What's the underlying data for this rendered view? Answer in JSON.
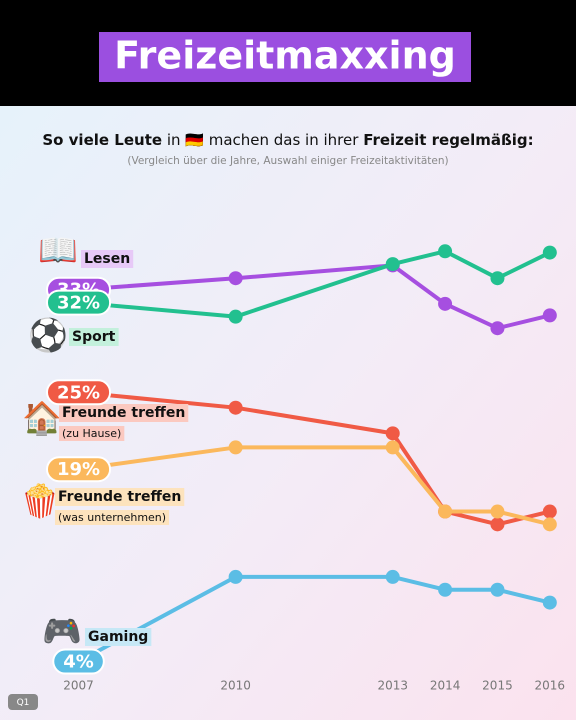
{
  "chart_data": {
    "type": "line",
    "headline": "Freizeitmaxxing",
    "title": [
      {
        "text": "So viele Leute",
        "bold": true
      },
      {
        "text": " in 🇩🇪 machen das in ihrer ",
        "bold": false
      },
      {
        "text": "Freizeit regelmäßig:",
        "bold": true
      }
    ],
    "subtitle": "(Vergleich über die Jahre, Auswahl einiger Freizeitaktivitäten)",
    "watermark": "Q1",
    "x": [
      2007,
      2010,
      2013,
      2014,
      2015,
      2016
    ],
    "xlim": [
      2005.5,
      2016.5
    ],
    "xticks": [
      2007,
      2010,
      2013,
      2014,
      2015,
      2016
    ],
    "ylim": [
      1,
      40
    ],
    "series": [
      {
        "name": "Lesen",
        "icon": "📖",
        "color": "#a64fe0",
        "label_bg": "#e7c9f7",
        "values": [
          33,
          33.9,
          34.9,
          31.9,
          30,
          31
        ],
        "value_labels": [
          "33%",
          null,
          null,
          null,
          null,
          null
        ]
      },
      {
        "name": "Sport",
        "icon": "⚽",
        "color": "#22c08f",
        "label_bg": "#c3f0dc",
        "values": [
          32,
          30.9,
          35,
          36,
          33.9,
          35.9
        ],
        "value_labels": [
          "32%",
          null,
          null,
          null,
          null,
          null
        ]
      },
      {
        "name": "Freunde treffen",
        "sublabel": "(zu Hause)",
        "icon": "🏠",
        "color": "#f05a45",
        "label_bg": "#fbc9c0",
        "values": [
          25,
          23.8,
          21.8,
          15.7,
          14.7,
          15.7
        ],
        "value_labels": [
          "25%",
          null,
          null,
          null,
          null,
          null
        ]
      },
      {
        "name": "Freunde treffen",
        "sublabel": "(was unternehmen)",
        "icon": "🍿",
        "color": "#fbb85c",
        "label_bg": "#fde3bd",
        "values": [
          19,
          20.7,
          20.7,
          15.7,
          15.7,
          14.7
        ],
        "value_labels": [
          "19%",
          null,
          null,
          null,
          null,
          null
        ]
      },
      {
        "name": "Gaming",
        "icon": "🎮",
        "color": "#5bbde5",
        "label_bg": "#c6e8f6",
        "values": [
          4,
          10.6,
          10.6,
          9.6,
          9.6,
          8.6
        ],
        "value_labels": [
          "4%",
          null,
          null,
          null,
          null,
          null
        ]
      }
    ]
  }
}
